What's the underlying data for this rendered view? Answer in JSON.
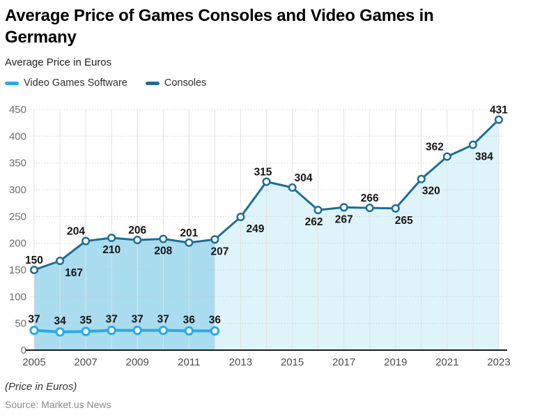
{
  "chart_data": {
    "type": "line",
    "title": "Average Price of Games Consoles and Video Games in Germany",
    "subtitle": "Average Price in Euros",
    "footnote": "(Price in Euros)",
    "source": "Source: Market.us News",
    "legend_position": "top-left",
    "legend": [
      {
        "label": "Video Games Software",
        "color": "#29ABE2"
      },
      {
        "label": "Consoles",
        "color": "#1C6E96"
      }
    ],
    "x_years": [
      2005,
      2006,
      2007,
      2008,
      2009,
      2010,
      2011,
      2012,
      2013,
      2014,
      2015,
      2016,
      2017,
      2018,
      2019,
      2020,
      2021,
      2022,
      2023
    ],
    "x_tick_labels": [
      "2005",
      "2007",
      "2009",
      "2011",
      "2013",
      "2015",
      "2017",
      "2019",
      "2021",
      "2023"
    ],
    "y_ticks": [
      0,
      50,
      100,
      150,
      200,
      250,
      300,
      350,
      400,
      450
    ],
    "ylim": [
      0,
      450
    ],
    "grid": {
      "vertical": "solid",
      "horizontal": "dotted",
      "vertical_color": "#e2e2e2",
      "horizontal_color": "#c4c4c4"
    },
    "axis_color": "#1a1a1a",
    "y_tick_label_color": "#6e6e6e",
    "x_tick_label_color": "#4d4d4d",
    "data_label_color": "#141414",
    "series": [
      {
        "name": "Video Games Software",
        "color": "#29ABE2",
        "line_width": 4,
        "marker_radius": 5.2,
        "marker_stroke_width": 3,
        "marker_fill": "#ffffff",
        "label_dy_above": -11,
        "label_dy_below": 22,
        "x": [
          2005,
          2006,
          2007,
          2008,
          2009,
          2010,
          2011,
          2012
        ],
        "values": [
          37,
          34,
          35,
          37,
          37,
          37,
          36,
          36
        ],
        "label_pos": [
          "above",
          "above",
          "above",
          "above",
          "above",
          "above",
          "above",
          "above"
        ],
        "label_dx": [
          0,
          0,
          0,
          0,
          0,
          0,
          0,
          0
        ]
      },
      {
        "name": "Consoles",
        "color": "#1C6E96",
        "line_width": 3,
        "marker_radius": 4.8,
        "marker_stroke_width": 2.5,
        "marker_fill": "#ffffff",
        "area_fill": "#DEF4FA",
        "label_dy_above": -9,
        "label_dy_below": 22,
        "x": [
          2005,
          2006,
          2007,
          2008,
          2009,
          2010,
          2011,
          2012,
          2013,
          2014,
          2015,
          2016,
          2017,
          2018,
          2019,
          2020,
          2021,
          2022,
          2023
        ],
        "values": [
          150,
          167,
          204,
          210,
          206,
          208,
          201,
          207,
          249,
          315,
          304,
          262,
          267,
          266,
          265,
          320,
          362,
          384,
          431
        ],
        "label_pos": [
          "above",
          "below",
          "above",
          "below",
          "above",
          "below",
          "above",
          "below",
          "below",
          "above",
          "above",
          "below",
          "below",
          "above",
          "below",
          "below",
          "above",
          "below",
          "above"
        ],
        "label_dx": [
          0,
          20,
          -14,
          0,
          0,
          0,
          0,
          7,
          21,
          -5,
          16,
          -6,
          0,
          0,
          12,
          14,
          -18,
          16,
          0
        ]
      }
    ],
    "highlight_band": {
      "x_from": 2005,
      "x_to": 2012,
      "color": "#A9DCEF"
    }
  }
}
